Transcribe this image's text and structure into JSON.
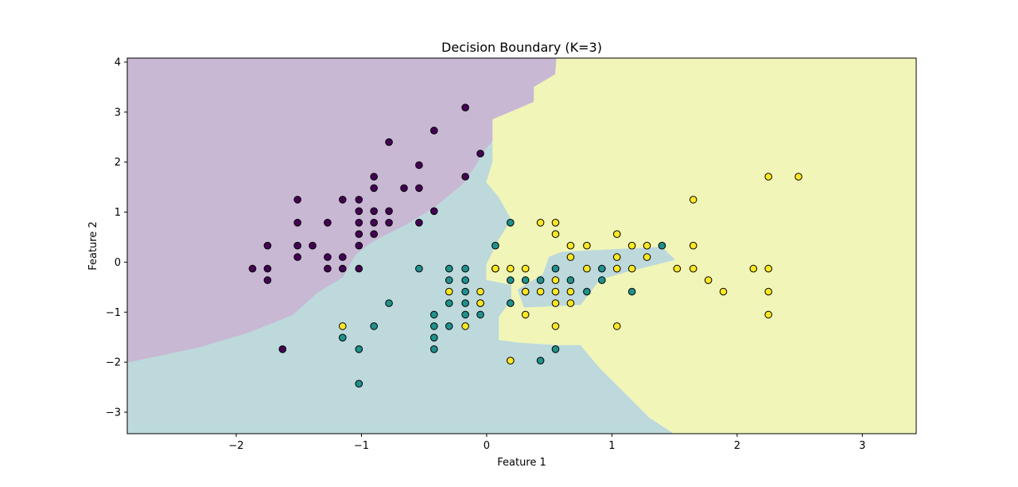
{
  "chart_data": {
    "type": "scatter",
    "title": "Decision Boundary (K=3)",
    "xlabel": "Feature 1",
    "ylabel": "Feature 2",
    "xlim": [
      -2.87,
      3.43
    ],
    "ylim": [
      -3.43,
      4.08
    ],
    "xticks": [
      -2,
      -1,
      0,
      1,
      2,
      3
    ],
    "yticks": [
      -3,
      -2,
      -1,
      0,
      1,
      2,
      3,
      4
    ],
    "grid": false,
    "legend": "none",
    "class_colors": [
      "#440154",
      "#21918c",
      "#fde725"
    ],
    "region_colors": [
      "#c8b8d3",
      "#bdd9dc",
      "#f1f6b8"
    ],
    "regions": [
      {
        "class": 0,
        "polygon": [
          [
            -2.87,
            4.08
          ],
          [
            0.56,
            4.08
          ],
          [
            0.55,
            3.75
          ],
          [
            0.38,
            3.5
          ],
          [
            0.38,
            3.2
          ],
          [
            0.05,
            2.85
          ],
          [
            0.05,
            2.45
          ],
          [
            -0.03,
            2.2
          ],
          [
            -0.1,
            1.9
          ],
          [
            -0.2,
            1.55
          ],
          [
            -0.3,
            1.35
          ],
          [
            -0.42,
            1.1
          ],
          [
            -0.65,
            0.75
          ],
          [
            -0.85,
            0.5
          ],
          [
            -0.95,
            0.35
          ],
          [
            -1.05,
            0.15
          ],
          [
            -1.15,
            -0.3
          ],
          [
            -1.35,
            -0.6
          ],
          [
            -1.55,
            -1.05
          ],
          [
            -1.9,
            -1.4
          ],
          [
            -2.3,
            -1.7
          ],
          [
            -2.87,
            -2.0
          ]
        ]
      },
      {
        "class": 2,
        "polygon": [
          [
            0.56,
            4.08
          ],
          [
            3.43,
            4.08
          ],
          [
            3.43,
            -3.43
          ],
          [
            1.5,
            -3.43
          ],
          [
            1.3,
            -3.1
          ],
          [
            1.1,
            -2.6
          ],
          [
            0.9,
            -2.1
          ],
          [
            0.75,
            -1.65
          ],
          [
            0.55,
            -1.65
          ],
          [
            0.25,
            -1.6
          ],
          [
            0.1,
            -1.55
          ],
          [
            0.1,
            -1.1
          ],
          [
            0.2,
            -0.75
          ],
          [
            0.2,
            -0.45
          ],
          [
            0.0,
            -0.35
          ],
          [
            0.0,
            -0.05
          ],
          [
            0.1,
            0.45
          ],
          [
            0.2,
            0.85
          ],
          [
            0.1,
            1.3
          ],
          [
            0.0,
            1.6
          ],
          [
            0.05,
            2.0
          ],
          [
            0.05,
            2.4
          ],
          [
            0.05,
            2.85
          ],
          [
            0.38,
            3.2
          ],
          [
            0.38,
            3.5
          ],
          [
            0.55,
            3.75
          ]
        ]
      },
      {
        "class": 1,
        "polygon": [
          [
            0.6,
            0.2
          ],
          [
            1.4,
            0.3
          ],
          [
            1.5,
            0.05
          ],
          [
            1.1,
            -0.2
          ],
          [
            0.9,
            -0.35
          ],
          [
            0.75,
            -0.85
          ],
          [
            0.3,
            -0.9
          ],
          [
            0.25,
            -0.55
          ],
          [
            0.45,
            -0.25
          ],
          [
            0.5,
            0.1
          ]
        ]
      }
    ],
    "series": [
      {
        "name": "0",
        "color": "#440154",
        "points": [
          [
            -1.87,
            -0.13
          ],
          [
            -1.75,
            0.33
          ],
          [
            -1.75,
            -0.13
          ],
          [
            -1.75,
            -0.36
          ],
          [
            -1.63,
            -1.74
          ],
          [
            -1.51,
            1.25
          ],
          [
            -1.51,
            0.79
          ],
          [
            -1.51,
            0.33
          ],
          [
            -1.51,
            0.1
          ],
          [
            -1.39,
            0.33
          ],
          [
            -1.27,
            0.79
          ],
          [
            -1.27,
            0.1
          ],
          [
            -1.27,
            -0.13
          ],
          [
            -1.15,
            1.25
          ],
          [
            -1.15,
            0.1
          ],
          [
            -1.15,
            -0.13
          ],
          [
            -1.02,
            1.25
          ],
          [
            -1.02,
            1.02
          ],
          [
            -1.02,
            0.79
          ],
          [
            -1.02,
            0.56
          ],
          [
            -1.02,
            0.33
          ],
          [
            -1.02,
            -0.13
          ],
          [
            -0.9,
            1.71
          ],
          [
            -0.9,
            1.48
          ],
          [
            -0.9,
            1.02
          ],
          [
            -0.9,
            0.79
          ],
          [
            -0.9,
            0.56
          ],
          [
            -0.78,
            2.4
          ],
          [
            -0.78,
            1.02
          ],
          [
            -0.78,
            0.79
          ],
          [
            -0.66,
            1.48
          ],
          [
            -0.54,
            1.94
          ],
          [
            -0.54,
            1.48
          ],
          [
            -0.54,
            0.79
          ],
          [
            -0.42,
            2.63
          ],
          [
            -0.42,
            1.02
          ],
          [
            -0.17,
            3.09
          ],
          [
            -0.17,
            1.71
          ],
          [
            -0.05,
            2.17
          ]
        ]
      },
      {
        "name": "1",
        "color": "#21918c",
        "points": [
          [
            -1.15,
            -1.51
          ],
          [
            -1.02,
            -1.74
          ],
          [
            -1.02,
            -2.43
          ],
          [
            -0.9,
            -1.28
          ],
          [
            -0.78,
            -0.82
          ],
          [
            -0.54,
            -0.13
          ],
          [
            -0.42,
            -1.05
          ],
          [
            -0.42,
            -1.28
          ],
          [
            -0.42,
            -1.51
          ],
          [
            -0.42,
            -1.74
          ],
          [
            -0.3,
            -0.13
          ],
          [
            -0.3,
            -0.36
          ],
          [
            -0.3,
            -0.82
          ],
          [
            -0.3,
            -1.28
          ],
          [
            -0.17,
            -0.13
          ],
          [
            -0.17,
            -0.36
          ],
          [
            -0.17,
            -0.59
          ],
          [
            -0.17,
            -0.82
          ],
          [
            -0.17,
            -1.05
          ],
          [
            -0.05,
            -0.82
          ],
          [
            -0.05,
            -1.05
          ],
          [
            0.07,
            0.33
          ],
          [
            0.19,
            0.79
          ],
          [
            0.19,
            -0.36
          ],
          [
            0.19,
            -0.82
          ],
          [
            0.31,
            -0.36
          ],
          [
            0.31,
            -0.59
          ],
          [
            0.43,
            -0.36
          ],
          [
            0.43,
            -1.97
          ],
          [
            0.55,
            -0.13
          ],
          [
            0.55,
            -1.74
          ],
          [
            0.67,
            -0.36
          ],
          [
            0.8,
            -0.59
          ],
          [
            0.92,
            -0.13
          ],
          [
            0.92,
            -0.36
          ],
          [
            1.16,
            -0.59
          ],
          [
            1.4,
            0.33
          ]
        ]
      },
      {
        "name": "2",
        "color": "#fde725",
        "points": [
          [
            -1.15,
            -1.28
          ],
          [
            -0.3,
            -0.59
          ],
          [
            -0.17,
            -1.28
          ],
          [
            -0.05,
            -0.59
          ],
          [
            -0.05,
            -0.82
          ],
          [
            0.07,
            -0.13
          ],
          [
            0.07,
            -0.13
          ],
          [
            0.19,
            -0.13
          ],
          [
            0.19,
            -1.97
          ],
          [
            0.31,
            -0.13
          ],
          [
            0.31,
            -0.59
          ],
          [
            0.31,
            -1.05
          ],
          [
            0.43,
            0.79
          ],
          [
            0.43,
            -0.59
          ],
          [
            0.55,
            0.79
          ],
          [
            0.55,
            0.56
          ],
          [
            0.55,
            -0.36
          ],
          [
            0.55,
            -0.59
          ],
          [
            0.55,
            -0.82
          ],
          [
            0.55,
            -1.28
          ],
          [
            0.67,
            0.33
          ],
          [
            0.67,
            0.1
          ],
          [
            0.67,
            -0.59
          ],
          [
            0.67,
            -0.82
          ],
          [
            0.8,
            0.33
          ],
          [
            0.8,
            -0.13
          ],
          [
            1.04,
            0.56
          ],
          [
            1.04,
            0.1
          ],
          [
            1.04,
            -0.13
          ],
          [
            1.04,
            -1.28
          ],
          [
            1.16,
            0.33
          ],
          [
            1.16,
            -0.13
          ],
          [
            1.28,
            0.33
          ],
          [
            1.28,
            0.1
          ],
          [
            1.52,
            -0.13
          ],
          [
            1.65,
            1.25
          ],
          [
            1.65,
            0.33
          ],
          [
            1.65,
            -0.13
          ],
          [
            1.77,
            -0.36
          ],
          [
            1.89,
            -0.59
          ],
          [
            2.13,
            -0.13
          ],
          [
            2.25,
            1.71
          ],
          [
            2.25,
            -0.13
          ],
          [
            2.25,
            -0.59
          ],
          [
            2.25,
            -1.05
          ],
          [
            2.49,
            1.71
          ]
        ]
      }
    ]
  }
}
